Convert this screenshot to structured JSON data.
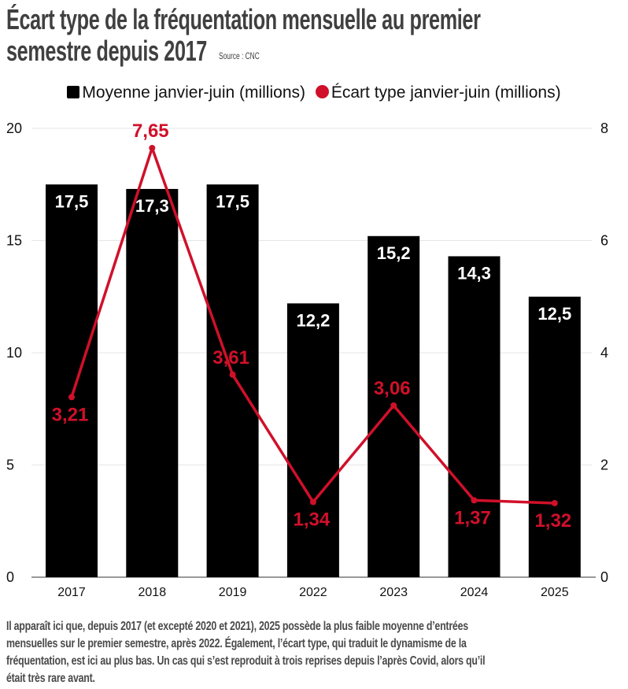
{
  "title_lines": [
    "Écart type de la fréquentation mensuelle au premier",
    "semestre depuis 2017"
  ],
  "source": "Source : CNC",
  "chart_data": {
    "type": "bar+line",
    "title": "Écart type de la fréquentation mensuelle au premier semestre depuis 2017",
    "categories": [
      "2017",
      "2018",
      "2019",
      "2022",
      "2023",
      "2024",
      "2025"
    ],
    "series": [
      {
        "name": "Moyenne janvier-juin (millions)",
        "type": "bar",
        "axis": "left",
        "color": "#000000",
        "values": [
          17.5,
          17.3,
          17.5,
          12.2,
          15.2,
          14.3,
          12.5
        ],
        "labels": [
          "17,5",
          "17,3",
          "17,5",
          "12,2",
          "15,2",
          "14,3",
          "12,5"
        ]
      },
      {
        "name": "Écart type janvier-juin (millions)",
        "type": "line",
        "axis": "right",
        "color": "#d0102a",
        "values": [
          3.21,
          7.65,
          3.61,
          1.34,
          3.06,
          1.37,
          1.32
        ],
        "labels": [
          "3,21",
          "7,65",
          "3,61",
          "1,34",
          "3,06",
          "1,37",
          "1,32"
        ],
        "label_pos": [
          "below",
          "above",
          "above",
          "below",
          "above",
          "below",
          "below"
        ]
      }
    ],
    "y_left": {
      "range": [
        0,
        20
      ],
      "ticks": [
        "0",
        "5",
        "10",
        "15",
        "20"
      ]
    },
    "y_right": {
      "range": [
        0,
        8
      ],
      "ticks": [
        "0",
        "2",
        "4",
        "6",
        "8"
      ]
    },
    "legend": "top-center",
    "grid": true
  },
  "note_lines": [
    "Il apparaît ici que, depuis 2017 (et excepté 2020 et 2021), 2025 possède la plus faible moyenne d’entrées",
    "mensuelles sur le premier semestre, après 2022. Également, l’écart type, qui traduit le dynamisme de la",
    "fréquentation, est ici au plus bas. Un cas qui s’est reproduit à trois reprises depuis l’après Covid, alors qu’il",
    "était très rare avant."
  ]
}
